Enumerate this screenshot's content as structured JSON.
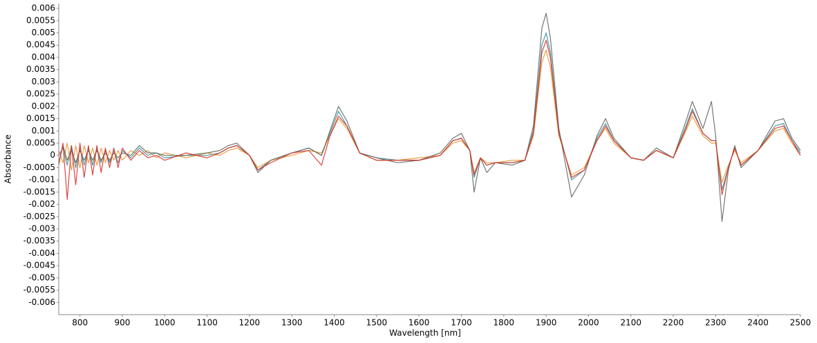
{
  "chart_data": {
    "type": "line",
    "x_label": "Wavelength [nm]",
    "y_label": "Absorbance",
    "xlim": [
      750,
      2500
    ],
    "ylim": [
      -0.0065,
      0.0062
    ],
    "xticks": [
      800,
      900,
      1000,
      1100,
      1200,
      1300,
      1400,
      1500,
      1600,
      1700,
      1800,
      1900,
      2000,
      2100,
      2200,
      2300,
      2400,
      2500
    ],
    "yticks": [
      0.006,
      0.0055,
      0.005,
      0.0045,
      0.004,
      0.0035,
      0.003,
      0.0025,
      0.002,
      0.0015,
      0.001,
      0.0005,
      0,
      -0.0005,
      -0.001,
      -0.0015,
      -0.002,
      -0.0025,
      -0.003,
      -0.0035,
      -0.004,
      -0.0045,
      -0.005,
      -0.0055,
      -0.006
    ],
    "grid": false,
    "x": [
      750,
      760,
      770,
      780,
      790,
      800,
      810,
      820,
      830,
      840,
      850,
      860,
      870,
      880,
      890,
      900,
      920,
      940,
      960,
      980,
      1000,
      1050,
      1100,
      1130,
      1150,
      1170,
      1200,
      1220,
      1250,
      1300,
      1340,
      1370,
      1390,
      1410,
      1430,
      1460,
      1500,
      1550,
      1600,
      1650,
      1680,
      1700,
      1720,
      1730,
      1745,
      1760,
      1780,
      1820,
      1850,
      1870,
      1890,
      1900,
      1910,
      1930,
      1960,
      1990,
      2020,
      2040,
      2060,
      2100,
      2130,
      2160,
      2200,
      2230,
      2245,
      2270,
      2290,
      2300,
      2315,
      2330,
      2345,
      2360,
      2400,
      2440,
      2460,
      2480,
      2500
    ],
    "series": [
      {
        "color": "#3a8fa0",
        "values": [
          0,
          0.0003,
          -0.0004,
          0.0004,
          -0.0005,
          0.0003,
          -0.0004,
          0.0003,
          -0.0004,
          0.0003,
          -0.0003,
          0.0002,
          -0.0003,
          0.0002,
          -0.0003,
          0.0002,
          -0.0001,
          0.0003,
          0,
          0.0001,
          -0.0001,
          0,
          0,
          0.0001,
          0.0003,
          0.0004,
          0,
          -0.0006,
          -0.0002,
          0.0001,
          0.0003,
          0,
          0.0009,
          0.0018,
          0.0012,
          0.0001,
          -0.0001,
          -0.0002,
          -0.0002,
          0,
          0.0006,
          0.0007,
          0.0002,
          -0.0009,
          -0.0001,
          -0.0004,
          -0.0003,
          -0.0003,
          -0.0002,
          0.001,
          0.0045,
          0.005,
          0.0042,
          0.001,
          -0.001,
          -0.0006,
          0.0007,
          0.0013,
          0.0006,
          -0.0001,
          -0.0002,
          0.0002,
          -0.0001,
          0.0012,
          0.0019,
          0.0009,
          0.0006,
          0.0006,
          -0.0014,
          -0.0005,
          0.0003,
          -0.0004,
          0.0002,
          0.0012,
          0.0013,
          0.0006,
          0.0001
        ]
      },
      {
        "color": "#e8962f",
        "values": [
          0.0002,
          -0.0003,
          0.0005,
          -0.0006,
          0.0004,
          -0.0005,
          0.0004,
          -0.0003,
          0.0003,
          -0.0004,
          0.0003,
          -0.0003,
          0.0002,
          -0.0002,
          0.0002,
          -0.0002,
          0.0002,
          0,
          0.0002,
          -0.0001,
          0.0001,
          -0.0001,
          0.0001,
          0,
          0.0002,
          0.0003,
          0,
          -0.0005,
          -0.0002,
          0,
          0.0002,
          0.0001,
          0.0008,
          0.0015,
          0.0011,
          0.0001,
          -0.0002,
          -0.0002,
          -0.0001,
          0,
          0.0005,
          0.0006,
          0.0002,
          -0.0007,
          -0.0001,
          -0.0003,
          -0.0003,
          -0.0002,
          -0.0002,
          0.0008,
          0.0038,
          0.0043,
          0.0036,
          0.0008,
          -0.0008,
          -0.0005,
          0.0006,
          0.0011,
          0.0005,
          -0.0001,
          -0.0002,
          0.0002,
          -0.0001,
          0.001,
          0.0016,
          0.0008,
          0.0005,
          0.0005,
          -0.0011,
          -0.0004,
          0.0002,
          -0.0003,
          0.0002,
          0.001,
          0.0011,
          0.0005,
          0
        ]
      },
      {
        "color": "#606a60",
        "values": [
          -0.0003,
          0.0004,
          -0.0002,
          0.0002,
          -0.0003,
          0.0002,
          -0.0002,
          0.0002,
          -0.0002,
          0.0002,
          -0.0002,
          0.0001,
          -0.0002,
          0.0001,
          -0.0001,
          0.0001,
          0,
          0.0004,
          0.0001,
          0.0001,
          0,
          0,
          0.0001,
          0.0002,
          0.0004,
          0.0005,
          0,
          -0.0007,
          -0.0002,
          0.0001,
          0.0003,
          0,
          0.001,
          0.002,
          0.0014,
          0.0001,
          -0.0001,
          -0.0003,
          -0.0002,
          0.0001,
          0.0007,
          0.0009,
          0.0002,
          -0.0015,
          -0.0001,
          -0.0007,
          -0.0003,
          -0.0004,
          -0.0002,
          0.0012,
          0.0052,
          0.0058,
          0.0048,
          0.0011,
          -0.0017,
          -0.0008,
          0.0008,
          0.0015,
          0.0007,
          -0.0001,
          -0.0002,
          0.0003,
          -0.0001,
          0.0014,
          0.0022,
          0.0011,
          0.0022,
          0.0008,
          -0.0027,
          -0.0006,
          0.0004,
          -0.0005,
          0.0002,
          0.0014,
          0.0015,
          0.0007,
          0.0002
        ]
      },
      {
        "color": "#d9302c",
        "values": [
          -0.0004,
          0.0005,
          -0.0018,
          0.0004,
          -0.0012,
          0.0005,
          -0.0009,
          0.0004,
          -0.0008,
          0.0004,
          -0.0007,
          0.0003,
          -0.0005,
          0.0003,
          -0.0005,
          0.0003,
          -0.0002,
          0.0002,
          -0.0001,
          0,
          -0.0002,
          0.0001,
          -0.0001,
          0.0001,
          0.0003,
          0.0004,
          0,
          -0.0006,
          -0.0003,
          0.0001,
          0.0002,
          -0.0004,
          0.0008,
          0.0016,
          0.0012,
          0.0001,
          -0.0002,
          -0.0002,
          -0.0002,
          0,
          0.0006,
          0.0007,
          0.0002,
          -0.0008,
          -0.0001,
          -0.0004,
          -0.0003,
          -0.0003,
          -0.0002,
          0.0009,
          0.0042,
          0.0047,
          0.004,
          0.0009,
          -0.0009,
          -0.0006,
          0.0006,
          0.0012,
          0.0006,
          -0.0001,
          -0.0002,
          0.0002,
          -0.0001,
          0.0011,
          0.0018,
          0.0009,
          0.0006,
          0.0006,
          -0.0016,
          -0.0005,
          0.0003,
          -0.0004,
          0.0002,
          0.0011,
          0.0012,
          0.0006,
          0
        ]
      }
    ]
  }
}
